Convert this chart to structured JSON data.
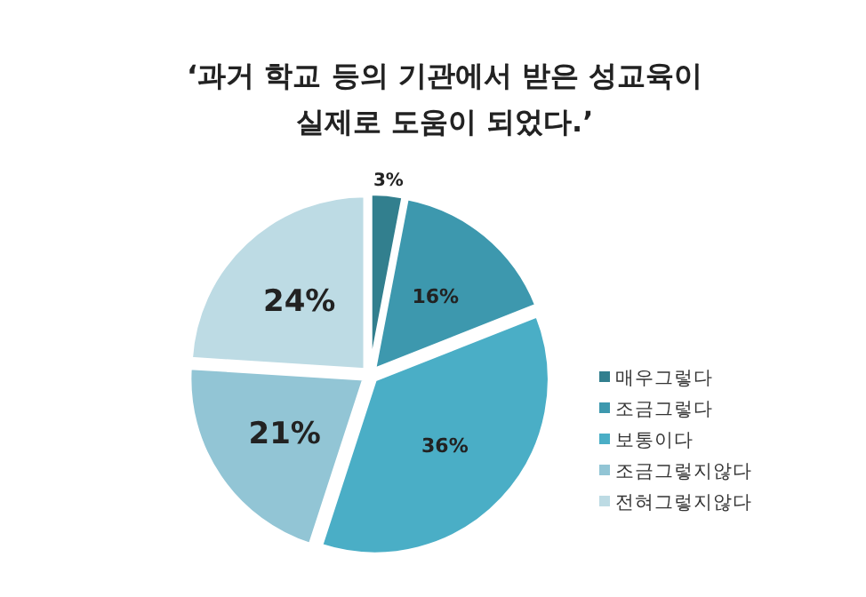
{
  "chart_data": {
    "type": "pie",
    "title": "‘과거 학교 등의 기관에서 받은 성교육이 실제로 도움이 되었다.’",
    "categories": [
      "매우그렇다",
      "조금그렇다",
      "보통이다",
      "조금그렇지않다",
      "전혀그렇지않다"
    ],
    "values": [
      3,
      16,
      36,
      21,
      24
    ],
    "colors": [
      "#327f8e",
      "#3d98ae",
      "#4aaec6",
      "#92c5d5",
      "#bddbe4"
    ],
    "value_labels": [
      "3%",
      "16%",
      "36%",
      "21%",
      "24%"
    ],
    "legend": "bottom right"
  }
}
